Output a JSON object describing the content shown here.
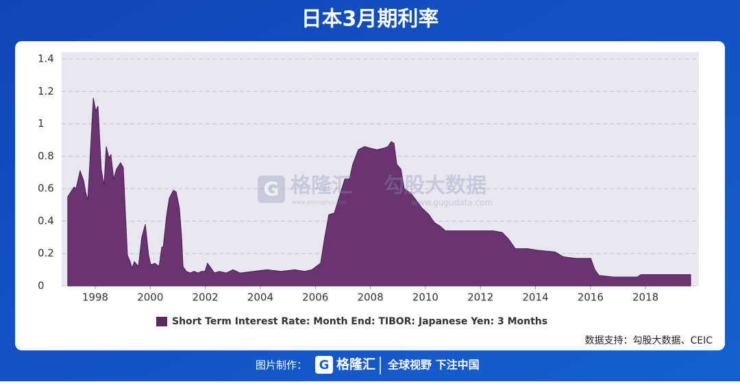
{
  "chart_data": {
    "type": "area",
    "title": "日本3月期利率",
    "x": [
      1997.0,
      1997.23,
      1997.3,
      1997.45,
      1997.58,
      1997.65,
      1997.73,
      1997.93,
      1998.02,
      1998.1,
      1998.22,
      1998.32,
      1998.4,
      1998.5,
      1998.57,
      1998.67,
      1998.77,
      1998.92,
      1999.02,
      1999.17,
      1999.27,
      1999.34,
      1999.42,
      1999.57,
      1999.69,
      1999.82,
      1999.94,
      2000.02,
      2000.17,
      2000.32,
      2000.42,
      2000.47,
      2000.59,
      2000.69,
      2000.84,
      2000.94,
      2001.06,
      2001.14,
      2001.19,
      2001.31,
      2001.46,
      2001.59,
      2001.74,
      2001.86,
      2001.99,
      2002.08,
      2002.21,
      2002.33,
      2002.51,
      2002.76,
      2003.01,
      2003.26,
      2003.75,
      2004.25,
      2004.75,
      2005.25,
      2005.62,
      2005.87,
      2006.19,
      2006.34,
      2006.49,
      2006.69,
      2007.07,
      2007.24,
      2007.36,
      2007.56,
      2007.79,
      2007.99,
      2008.24,
      2008.49,
      2008.64,
      2008.76,
      2008.86,
      2008.96,
      2009.11,
      2009.23,
      2009.48,
      2009.88,
      2010.13,
      2010.33,
      2010.53,
      2010.73,
      2011.72,
      2012.47,
      2012.79,
      2013.02,
      2013.27,
      2013.72,
      2014.09,
      2014.71,
      2015.01,
      2015.46,
      2016.01,
      2016.16,
      2016.31,
      2016.83,
      2017.7,
      2017.83,
      2019.64
    ],
    "series": [
      {
        "name": "Short Term Interest Rate: Month End: TIBOR: Japanese Yen: 3 Months",
        "color": "#6a3471",
        "values": [
          0.55,
          0.61,
          0.6,
          0.71,
          0.65,
          0.58,
          0.53,
          1.16,
          1.08,
          1.11,
          0.72,
          0.62,
          0.86,
          0.79,
          0.81,
          0.66,
          0.72,
          0.76,
          0.73,
          0.19,
          0.15,
          0.11,
          0.15,
          0.12,
          0.3,
          0.38,
          0.19,
          0.13,
          0.14,
          0.12,
          0.24,
          0.24,
          0.43,
          0.54,
          0.59,
          0.58,
          0.48,
          0.3,
          0.12,
          0.09,
          0.08,
          0.09,
          0.08,
          0.09,
          0.09,
          0.14,
          0.11,
          0.08,
          0.09,
          0.08,
          0.1,
          0.08,
          0.09,
          0.1,
          0.09,
          0.1,
          0.09,
          0.1,
          0.14,
          0.3,
          0.44,
          0.45,
          0.66,
          0.66,
          0.75,
          0.84,
          0.86,
          0.85,
          0.84,
          0.85,
          0.86,
          0.89,
          0.88,
          0.75,
          0.72,
          0.6,
          0.57,
          0.48,
          0.44,
          0.39,
          0.37,
          0.34,
          0.34,
          0.34,
          0.33,
          0.29,
          0.23,
          0.23,
          0.22,
          0.21,
          0.18,
          0.17,
          0.17,
          0.1,
          0.065,
          0.055,
          0.055,
          0.07,
          0.07
        ]
      }
    ],
    "xlim": [
      1996.78,
      2019.94
    ],
    "xticks": [
      1998,
      2000,
      2002,
      2004,
      2006,
      2008,
      2010,
      2012,
      2014,
      2016,
      2018
    ],
    "ylim": [
      0,
      1.4
    ],
    "yticks": [
      0,
      0.2,
      0.4,
      0.6,
      0.8,
      1,
      1.2,
      1.4
    ],
    "grid": true,
    "legend": "bottom",
    "source": "数据支持：勾股大数据、CEIC"
  },
  "watermark": {
    "brand": "格隆汇",
    "brand_url": "www.gelonghui.com",
    "partner": "勾股大数据",
    "partner_url": "www.gugudata.com"
  },
  "footer": {
    "made_by": "图片制作：",
    "logo": "格隆汇",
    "slogan": "全球视野 下注中国"
  }
}
